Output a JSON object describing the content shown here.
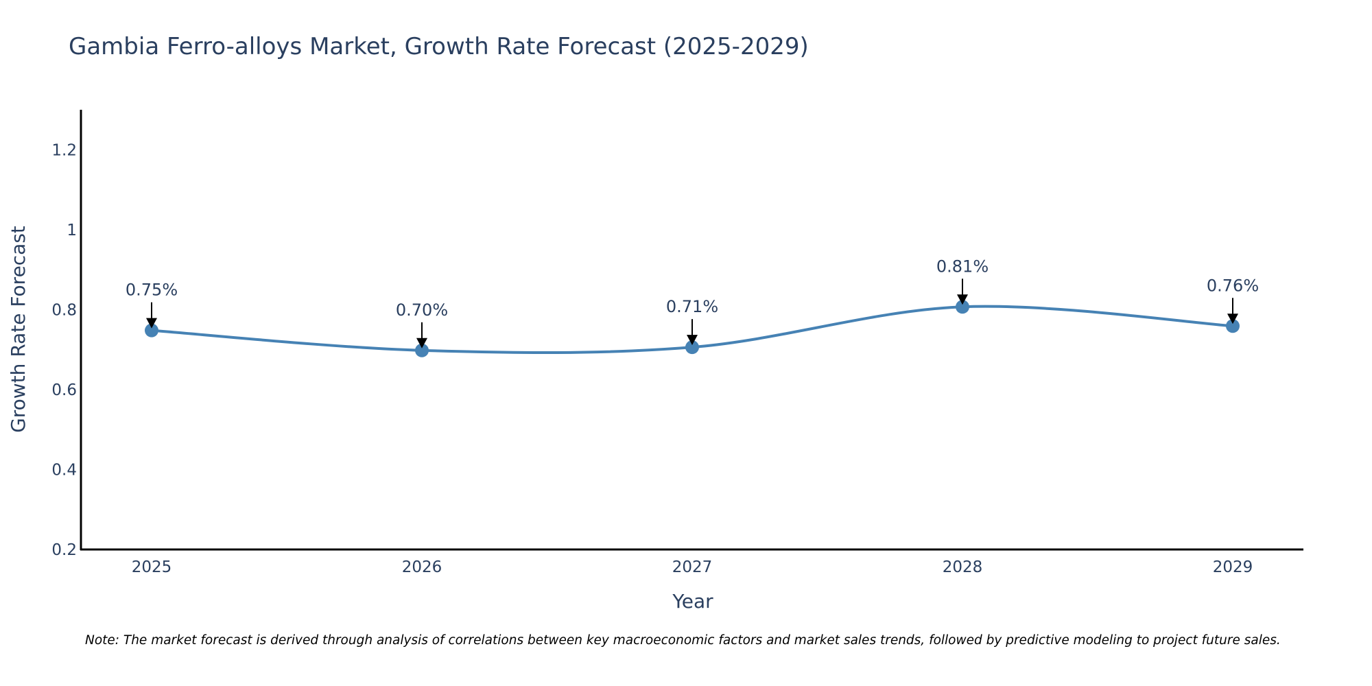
{
  "chart_data": {
    "type": "line",
    "title": "Gambia Ferro-alloys Market, Growth Rate Forecast (2025-2029)",
    "xlabel": "Year",
    "ylabel": "Growth Rate Forecast",
    "categories": [
      "2025",
      "2026",
      "2027",
      "2028",
      "2029"
    ],
    "values": [
      0.748,
      0.698,
      0.706,
      0.807,
      0.759
    ],
    "data_labels": [
      "0.75%",
      "0.70%",
      "0.71%",
      "0.81%",
      "0.76%"
    ],
    "ylim": [
      0.2,
      1.3
    ],
    "yticks": [
      0.2,
      0.4,
      0.6,
      0.8,
      1,
      1.2
    ],
    "ytick_labels": [
      "0.2",
      "0.4",
      "0.6",
      "0.8",
      "1",
      "1.2"
    ],
    "grid": false,
    "line_color": "#4682b4",
    "marker_color": "#4682b4",
    "annotation_arrow_color": "#000000",
    "line_shape": "spline"
  },
  "note": "Note: The market forecast is derived through analysis of correlations between key macroeconomic factors and market sales trends, followed by predictive modeling to project future sales."
}
